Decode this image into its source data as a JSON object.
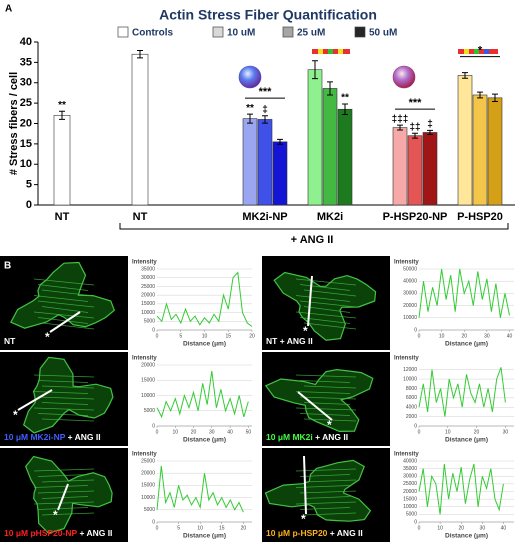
{
  "panel_labels": {
    "a": "A",
    "b": "B"
  },
  "chart_data": [
    {
      "type": "bar",
      "title": "Actin Stress Fiber Quantification",
      "y_label": "# Stress fibers / cell",
      "ylim": [
        0,
        40
      ],
      "yticks": [
        0,
        5,
        10,
        15,
        20,
        25,
        30,
        35,
        40
      ],
      "categories": [
        "NT",
        "NT",
        "MK2i-NP",
        "MK2i",
        "P-HSP20-NP",
        "P-HSP20"
      ],
      "group_label": "+ ANG II",
      "series": [
        {
          "name": "Controls",
          "color": "#ffffff",
          "values": [
            22,
            37,
            null,
            null,
            null,
            null
          ],
          "errors": [
            1,
            0.9,
            null,
            null,
            null,
            null
          ],
          "colors": [
            "#ffffff",
            "#ffffff",
            null,
            null,
            null,
            null
          ],
          "value_labels": [
            "**",
            null,
            null,
            null,
            null,
            null
          ]
        },
        {
          "name": "10 uM",
          "color": "#d9d9d9",
          "values": [
            null,
            null,
            21.2,
            33.2,
            19,
            31.8
          ],
          "errors": [
            null,
            null,
            1.1,
            2.2,
            0.6,
            0.7
          ],
          "colors": [
            null,
            null,
            "#9aa6f2",
            "#8ef08e",
            "#f7a8a8",
            "#ffe699"
          ],
          "value_labels": [
            null,
            null,
            "**",
            null,
            "‡‡‡",
            null
          ]
        },
        {
          "name": "25 uM",
          "color": "#a6a6a6",
          "values": [
            null,
            null,
            21,
            28.6,
            17,
            27
          ],
          "errors": [
            null,
            null,
            0.9,
            1.6,
            0.6,
            0.7
          ],
          "colors": [
            null,
            null,
            "#3f51e8",
            "#43b843",
            "#e45555",
            "#f3c64a"
          ],
          "value_labels": [
            null,
            null,
            "‡",
            null,
            "‡‡",
            null
          ]
        },
        {
          "name": "50 uM",
          "color": "#262626",
          "values": [
            null,
            null,
            15.5,
            23.5,
            17.8,
            26.3
          ],
          "errors": [
            null,
            null,
            0.6,
            1.3,
            0.5,
            0.9
          ],
          "colors": [
            null,
            null,
            "#1414d4",
            "#1e7a1e",
            "#a01515",
            "#d4a017"
          ],
          "value_labels": [
            null,
            null,
            null,
            "**",
            "‡",
            null
          ]
        }
      ],
      "bracket_labels": [
        null,
        null,
        "***",
        null,
        "***",
        "*"
      ]
    },
    {
      "type": "line",
      "caption": [
        {
          "text": "NT",
          "color": "#ffffff"
        }
      ],
      "image_marker": "*",
      "y_label": "Intensity",
      "x_label": "Distance (μm)",
      "color": "#33cc33",
      "xlim": [
        0,
        20
      ],
      "xticks": [
        0,
        5,
        10,
        15,
        20
      ],
      "ylim": [
        0,
        35000
      ],
      "yticks": [
        0,
        5000,
        10000,
        15000,
        20000,
        25000,
        30000,
        35000
      ],
      "x": [
        0,
        1,
        2,
        3,
        4,
        5,
        6,
        7,
        8,
        9,
        10,
        11,
        12,
        13,
        14,
        15,
        16,
        17,
        18,
        19,
        20
      ],
      "values": [
        8000,
        5000,
        15000,
        6000,
        9000,
        4000,
        12000,
        5000,
        8000,
        3000,
        7000,
        4000,
        9000,
        5000,
        20000,
        12000,
        30000,
        33000,
        10000,
        4000,
        2000
      ]
    },
    {
      "type": "line",
      "caption": [
        {
          "text": "10 μM MK2i-NP",
          "color": "#4060ff"
        },
        {
          "text": " + ANG II",
          "color": "#ffffff"
        }
      ],
      "image_marker": "*",
      "y_label": "Intensity",
      "x_label": "Distance (μm)",
      "color": "#33cc33",
      "xlim": [
        0,
        52
      ],
      "xticks": [
        0,
        10,
        20,
        30,
        40,
        50
      ],
      "ylim": [
        0,
        20000
      ],
      "yticks": [
        0,
        5000,
        10000,
        15000,
        20000
      ],
      "x": [
        0,
        2.5,
        5,
        7.5,
        10,
        12.5,
        15,
        17.5,
        20,
        22.5,
        25,
        27.5,
        30,
        32.5,
        35,
        37.5,
        40,
        42.5,
        45,
        47.5,
        50
      ],
      "values": [
        6000,
        3000,
        8000,
        5000,
        9000,
        4000,
        10000,
        6000,
        11000,
        5000,
        14000,
        7000,
        18000,
        6000,
        12000,
        5000,
        9000,
        4000,
        10000,
        3000,
        8000
      ]
    },
    {
      "type": "line",
      "caption": [
        {
          "text": "10 μM pHSP20-NP",
          "color": "#ff2020"
        },
        {
          "text": " + ANG II",
          "color": "#ffffff"
        }
      ],
      "image_marker": "*",
      "y_label": "Intensity",
      "x_label": "Distance (μm)",
      "color": "#33cc33",
      "xlim": [
        0,
        22
      ],
      "xticks": [
        0,
        5,
        10,
        15,
        20
      ],
      "ylim": [
        0,
        25000
      ],
      "yticks": [
        0,
        5000,
        10000,
        15000,
        20000,
        25000
      ],
      "x": [
        0,
        1,
        2,
        3,
        4,
        5,
        6,
        7,
        8,
        9,
        10,
        11,
        12,
        13,
        14,
        15,
        16,
        17,
        18,
        19,
        20
      ],
      "values": [
        5000,
        23000,
        8000,
        12000,
        6000,
        15000,
        9000,
        11000,
        7000,
        10000,
        6000,
        20000,
        9000,
        12000,
        7000,
        10000,
        6000,
        9000,
        5000,
        8000,
        4000
      ]
    },
    {
      "type": "line",
      "caption": [
        {
          "text": "NT + ANG II",
          "color": "#ffffff"
        }
      ],
      "image_marker": "*",
      "y_label": "Intensity",
      "x_label": "Distance (μm)",
      "color": "#33cc33",
      "xlim": [
        0,
        42
      ],
      "xticks": [
        0,
        10,
        20,
        30,
        40
      ],
      "ylim": [
        0,
        50000
      ],
      "yticks": [
        0,
        10000,
        20000,
        30000,
        40000,
        50000
      ],
      "x": [
        0,
        2,
        4,
        6,
        8,
        10,
        12,
        14,
        16,
        18,
        20,
        22,
        24,
        26,
        28,
        30,
        32,
        34,
        36,
        38,
        40
      ],
      "values": [
        10000,
        40000,
        15000,
        35000,
        20000,
        50000,
        25000,
        45000,
        15000,
        50000,
        30000,
        40000,
        20000,
        48000,
        25000,
        42000,
        15000,
        38000,
        10000,
        30000,
        12000
      ]
    },
    {
      "type": "line",
      "caption": [
        {
          "text": "10 μM MK2i",
          "color": "#40ff40"
        },
        {
          "text": " + ANG II",
          "color": "#ffffff"
        }
      ],
      "image_marker": "*",
      "y_label": "Intensity",
      "x_label": "Distance (μm)",
      "color": "#33cc33",
      "xlim": [
        0,
        33
      ],
      "xticks": [
        0,
        10,
        20,
        30
      ],
      "ylim": [
        0,
        13000
      ],
      "yticks": [
        0,
        2000,
        4000,
        6000,
        8000,
        10000,
        12000
      ],
      "x": [
        0,
        1.5,
        3,
        4.5,
        6,
        7.5,
        9,
        10.5,
        12,
        13.5,
        15,
        16.5,
        18,
        19.5,
        21,
        22.5,
        24,
        25.5,
        27,
        28.5,
        30
      ],
      "values": [
        4000,
        9000,
        3000,
        12000,
        5000,
        8000,
        2000,
        10000,
        6000,
        9000,
        4000,
        11000,
        7000,
        5000,
        9000,
        4000,
        8000,
        3000,
        10000,
        12500,
        5000
      ]
    },
    {
      "type": "line",
      "caption": [
        {
          "text": "10 μM p-HSP20",
          "color": "#ffb020"
        },
        {
          "text": " + ANG II",
          "color": "#ffffff"
        }
      ],
      "image_marker": "*",
      "y_label": "Intensity",
      "x_label": "Distance (μm)",
      "color": "#33cc33",
      "xlim": [
        0,
        45
      ],
      "xticks": [
        0,
        10,
        20,
        30,
        40
      ],
      "ylim": [
        0,
        40000
      ],
      "yticks": [
        0,
        5000,
        10000,
        15000,
        20000,
        25000,
        30000,
        35000,
        40000
      ],
      "x": [
        0,
        2,
        4,
        6,
        8,
        10,
        12,
        14,
        16,
        18,
        20,
        22,
        24,
        26,
        28,
        30,
        32,
        34,
        36,
        38,
        40
      ],
      "values": [
        20000,
        35000,
        10000,
        30000,
        25000,
        5000,
        38000,
        15000,
        32000,
        20000,
        36000,
        12000,
        28000,
        38000,
        10000,
        30000,
        22000,
        35000,
        15000,
        8000,
        25000
      ]
    }
  ]
}
